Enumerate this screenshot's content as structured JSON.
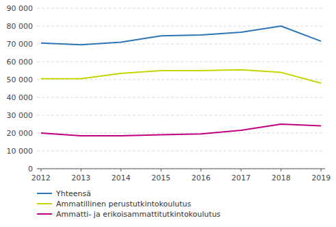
{
  "chart_data": {
    "type": "line",
    "x": [
      2012,
      2013,
      2014,
      2015,
      2016,
      2017,
      2018,
      2019
    ],
    "series": [
      {
        "name": "Yhteensä",
        "color": "#2E75B6",
        "values": [
          70500,
          69500,
          71000,
          74500,
          75000,
          76500,
          80000,
          71500
        ]
      },
      {
        "name": "Ammatillinen perustutkintokoulutus",
        "color": "#C5D500",
        "values": [
          50500,
          50500,
          53500,
          55000,
          55000,
          55500,
          54000,
          48000
        ]
      },
      {
        "name": "Ammatti- ja erikoisammattitutkintokoulutus",
        "color": "#C00080",
        "values": [
          20000,
          18500,
          18500,
          19000,
          19500,
          21500,
          25000,
          24000
        ]
      }
    ],
    "xlim": [
      2011.9,
      2019.1
    ],
    "xticks": [
      2012,
      2013,
      2014,
      2015,
      2016,
      2017,
      2018,
      2019
    ],
    "ylim": [
      0,
      90000
    ],
    "yticks": [
      0,
      {
        "value": 10000,
        "label": "10 000"
      },
      {
        "value": 20000,
        "label": "20 000"
      },
      {
        "value": 30000,
        "label": "30 000"
      },
      {
        "value": 40000,
        "label": "40 000"
      },
      {
        "value": 50000,
        "label": "50 000"
      },
      {
        "value": 60000,
        "label": "60 000"
      },
      {
        "value": 70000,
        "label": "70 000"
      },
      {
        "value": 80000,
        "label": "80 000"
      },
      {
        "value": 90000,
        "label": "90 000"
      }
    ],
    "grid": true,
    "legend": "bottom"
  }
}
